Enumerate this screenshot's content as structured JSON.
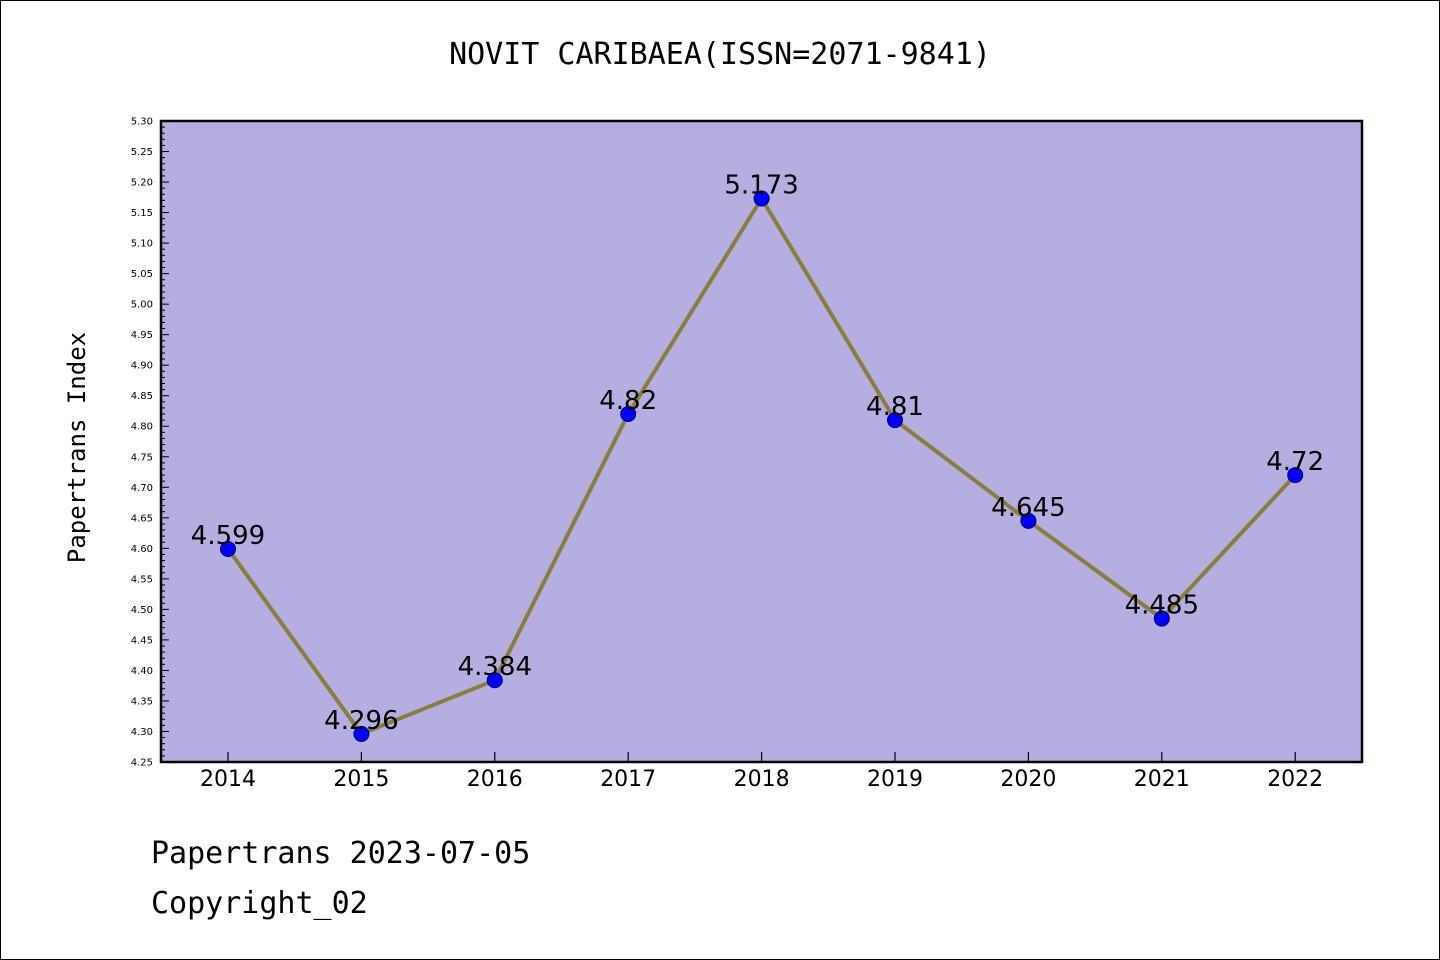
{
  "header": {
    "title": "NOVIT CARIBAEA(ISSN=2071-9841)"
  },
  "footer": {
    "line1": "Papertrans 2023-07-05",
    "line2": "Copyright_02"
  },
  "colors": {
    "plot_background": "#b4aee1",
    "line": "#8b7d3c",
    "marker": "#0000ff",
    "axis": "#000000"
  },
  "chart_data": {
    "type": "line",
    "title": "NOVIT CARIBAEA(ISSN=2071-9841)",
    "xlabel": "",
    "ylabel": "Papertrans Index",
    "categories": [
      "2014",
      "2015",
      "2016",
      "2017",
      "2018",
      "2019",
      "2020",
      "2021",
      "2022"
    ],
    "series": [
      {
        "values": [
          4.599,
          4.296,
          4.384,
          4.82,
          5.173,
          4.81,
          4.645,
          4.485,
          4.72
        ],
        "labels": [
          "4.599",
          "4.296",
          "4.384",
          "4.82",
          "5.173",
          "4.81",
          "4.645",
          "4.485",
          "4.72"
        ]
      }
    ],
    "ylim": [
      4.25,
      5.3
    ],
    "yticks": [
      "4.25",
      "4.30",
      "4.35",
      "4.40",
      "4.45",
      "4.50",
      "4.55",
      "4.60",
      "4.65",
      "4.70",
      "4.75",
      "4.80",
      "4.85",
      "4.90",
      "4.95",
      "5.00",
      "5.05",
      "5.10",
      "5.15",
      "5.20",
      "5.25",
      "5.30"
    ],
    "grid": false,
    "legend": "none",
    "marker": "circle"
  }
}
